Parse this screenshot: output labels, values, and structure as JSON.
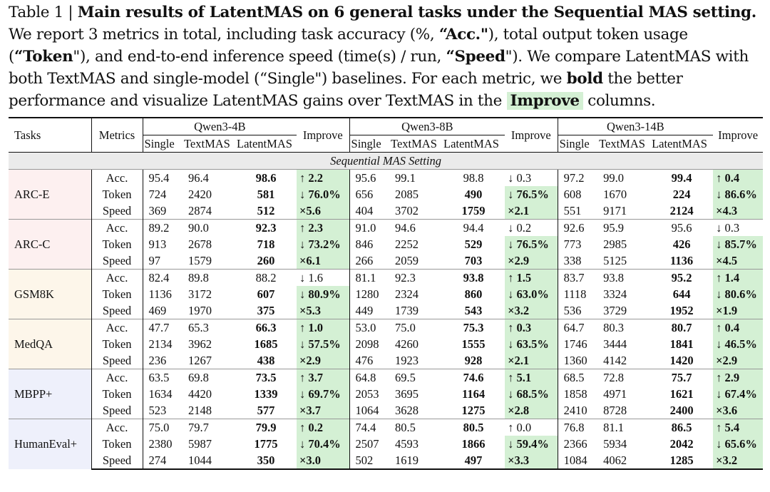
{
  "caption": {
    "label": "Table 1 | ",
    "title": "Main results of LatentMAS on 6 general tasks under the Sequential MAS setting.",
    "text1": " We report 3 metrics in total, including task accuracy (%, ",
    "acc": "“Acc.\"",
    "text2": "), total output token usage (",
    "token": "“Token",
    "text3": "\"), and end-to-end inference speed (time(s) / run, ",
    "speed": "“Speed",
    "text4": "\"). We compare LatentMAS with both TextMAS and single-model (“Single\") baselines. For each metric, we ",
    "bold_word": "bold",
    "text5": " the better performance and visualize LatentMAS gains over TextMAS in the ",
    "improve_word": "Improve",
    "text6": " columns."
  },
  "header": {
    "tasks": "Tasks",
    "metrics": "Metrics",
    "improve": "Improve",
    "models": [
      "Qwen3-4B",
      "Qwen3-8B",
      "Qwen3-14B"
    ],
    "sub": [
      "Single",
      "TextMAS",
      "LatentMAS"
    ]
  },
  "setting": "Sequential MAS Setting",
  "colors": {
    "improve_bg": "#d4f0d4",
    "setting_bg": "#ebebeb"
  },
  "rows": [
    {
      "task": "ARC-E",
      "lines": [
        {
          "metric": "Acc.",
          "m": [
            {
              "s": "95.4",
              "t": "96.4",
              "l": "98.6",
              "lb": true,
              "i": "↑ 2.2",
              "ib": true,
              "ig": true
            },
            {
              "s": "95.6",
              "t": "99.1",
              "l": "98.8",
              "lb": false,
              "i": "↓ 0.3",
              "ib": false,
              "ig": false
            },
            {
              "s": "97.2",
              "t": "99.0",
              "l": "99.4",
              "lb": true,
              "i": "↑ 0.4",
              "ib": true,
              "ig": true
            }
          ]
        },
        {
          "metric": "Token",
          "m": [
            {
              "s": "724",
              "t": "2420",
              "l": "581",
              "lb": true,
              "i": "↓ 76.0%",
              "ib": true,
              "ig": true
            },
            {
              "s": "656",
              "t": "2085",
              "l": "490",
              "lb": true,
              "i": "↓ 76.5%",
              "ib": true,
              "ig": true
            },
            {
              "s": "608",
              "t": "1670",
              "l": "224",
              "lb": true,
              "i": "↓ 86.6%",
              "ib": true,
              "ig": true
            }
          ]
        },
        {
          "metric": "Speed",
          "m": [
            {
              "s": "369",
              "t": "2874",
              "l": "512",
              "lb": true,
              "i": "×5.6",
              "ib": true,
              "ig": true
            },
            {
              "s": "404",
              "t": "3702",
              "l": "1759",
              "lb": true,
              "i": "×2.1",
              "ib": true,
              "ig": true
            },
            {
              "s": "551",
              "t": "9171",
              "l": "2124",
              "lb": true,
              "i": "×4.3",
              "ib": true,
              "ig": true
            }
          ]
        }
      ]
    },
    {
      "task": "ARC-C",
      "lines": [
        {
          "metric": "Acc.",
          "m": [
            {
              "s": "89.2",
              "t": "90.0",
              "l": "92.3",
              "lb": true,
              "i": "↑ 2.3",
              "ib": true,
              "ig": true
            },
            {
              "s": "91.0",
              "t": "94.6",
              "l": "94.4",
              "lb": false,
              "i": "↓ 0.2",
              "ib": false,
              "ig": false
            },
            {
              "s": "92.6",
              "t": "95.9",
              "l": "95.6",
              "lb": false,
              "i": "↓ 0.3",
              "ib": false,
              "ig": false
            }
          ]
        },
        {
          "metric": "Token",
          "m": [
            {
              "s": "913",
              "t": "2678",
              "l": "718",
              "lb": true,
              "i": "↓ 73.2%",
              "ib": true,
              "ig": true
            },
            {
              "s": "846",
              "t": "2252",
              "l": "529",
              "lb": true,
              "i": "↓ 76.5%",
              "ib": true,
              "ig": true
            },
            {
              "s": "773",
              "t": "2985",
              "l": "426",
              "lb": true,
              "i": "↓ 85.7%",
              "ib": true,
              "ig": true
            }
          ]
        },
        {
          "metric": "Speed",
          "m": [
            {
              "s": "97",
              "t": "1579",
              "l": "260",
              "lb": true,
              "i": "×6.1",
              "ib": true,
              "ig": true
            },
            {
              "s": "266",
              "t": "2059",
              "l": "703",
              "lb": true,
              "i": "×2.9",
              "ib": true,
              "ig": true
            },
            {
              "s": "338",
              "t": "5125",
              "l": "1136",
              "lb": true,
              "i": "×4.5",
              "ib": true,
              "ig": true
            }
          ]
        }
      ]
    },
    {
      "task": "GSM8K",
      "lines": [
        {
          "metric": "Acc.",
          "m": [
            {
              "s": "82.4",
              "t": "89.8",
              "l": "88.2",
              "lb": false,
              "i": "↓ 1.6",
              "ib": false,
              "ig": false
            },
            {
              "s": "81.1",
              "t": "92.3",
              "l": "93.8",
              "lb": true,
              "i": "↑ 1.5",
              "ib": true,
              "ig": true
            },
            {
              "s": "83.7",
              "t": "93.8",
              "l": "95.2",
              "lb": true,
              "i": "↑ 1.4",
              "ib": true,
              "ig": true
            }
          ]
        },
        {
          "metric": "Token",
          "m": [
            {
              "s": "1136",
              "t": "3172",
              "l": "607",
              "lb": true,
              "i": "↓ 80.9%",
              "ib": true,
              "ig": true
            },
            {
              "s": "1280",
              "t": "2324",
              "l": "860",
              "lb": true,
              "i": "↓ 63.0%",
              "ib": true,
              "ig": true
            },
            {
              "s": "1118",
              "t": "3324",
              "l": "644",
              "lb": true,
              "i": "↓ 80.6%",
              "ib": true,
              "ig": true
            }
          ]
        },
        {
          "metric": "Speed",
          "m": [
            {
              "s": "469",
              "t": "1970",
              "l": "375",
              "lb": true,
              "i": "×5.3",
              "ib": true,
              "ig": true
            },
            {
              "s": "449",
              "t": "1739",
              "l": "543",
              "lb": true,
              "i": "×3.2",
              "ib": true,
              "ig": true
            },
            {
              "s": "536",
              "t": "3729",
              "l": "1952",
              "lb": true,
              "i": "×1.9",
              "ib": true,
              "ig": true
            }
          ]
        }
      ]
    },
    {
      "task": "MedQA",
      "lines": [
        {
          "metric": "Acc.",
          "m": [
            {
              "s": "47.7",
              "t": "65.3",
              "l": "66.3",
              "lb": true,
              "i": "↑ 1.0",
              "ib": true,
              "ig": true
            },
            {
              "s": "53.0",
              "t": "75.0",
              "l": "75.3",
              "lb": true,
              "i": "↑ 0.3",
              "ib": true,
              "ig": true
            },
            {
              "s": "64.7",
              "t": "80.3",
              "l": "80.7",
              "lb": true,
              "i": "↑ 0.4",
              "ib": true,
              "ig": true
            }
          ]
        },
        {
          "metric": "Token",
          "m": [
            {
              "s": "2134",
              "t": "3962",
              "l": "1685",
              "lb": true,
              "i": "↓ 57.5%",
              "ib": true,
              "ig": true
            },
            {
              "s": "2098",
              "t": "4260",
              "l": "1555",
              "lb": true,
              "i": "↓ 63.5%",
              "ib": true,
              "ig": true
            },
            {
              "s": "1746",
              "t": "3444",
              "l": "1841",
              "lb": true,
              "i": "↓ 46.5%",
              "ib": true,
              "ig": true
            }
          ]
        },
        {
          "metric": "Speed",
          "m": [
            {
              "s": "236",
              "t": "1267",
              "l": "438",
              "lb": true,
              "i": "×2.9",
              "ib": true,
              "ig": true
            },
            {
              "s": "476",
              "t": "1923",
              "l": "928",
              "lb": true,
              "i": "×2.1",
              "ib": true,
              "ig": true
            },
            {
              "s": "1360",
              "t": "4142",
              "l": "1420",
              "lb": true,
              "i": "×2.9",
              "ib": true,
              "ig": true
            }
          ]
        }
      ]
    },
    {
      "task": "MBPP+",
      "lines": [
        {
          "metric": "Acc.",
          "m": [
            {
              "s": "63.5",
              "t": "69.8",
              "l": "73.5",
              "lb": true,
              "i": "↑ 3.7",
              "ib": true,
              "ig": true
            },
            {
              "s": "64.8",
              "t": "69.5",
              "l": "74.6",
              "lb": true,
              "i": "↑ 5.1",
              "ib": true,
              "ig": true
            },
            {
              "s": "68.5",
              "t": "72.8",
              "l": "75.7",
              "lb": true,
              "i": "↑ 2.9",
              "ib": true,
              "ig": true
            }
          ]
        },
        {
          "metric": "Token",
          "m": [
            {
              "s": "1634",
              "t": "4420",
              "l": "1339",
              "lb": true,
              "i": "↓ 69.7%",
              "ib": true,
              "ig": true
            },
            {
              "s": "2053",
              "t": "3695",
              "l": "1164",
              "lb": true,
              "i": "↓ 68.5%",
              "ib": true,
              "ig": true
            },
            {
              "s": "1858",
              "t": "4971",
              "l": "1621",
              "lb": true,
              "i": "↓ 67.4%",
              "ib": true,
              "ig": true
            }
          ]
        },
        {
          "metric": "Speed",
          "m": [
            {
              "s": "523",
              "t": "2148",
              "l": "577",
              "lb": true,
              "i": "×3.7",
              "ib": true,
              "ig": true
            },
            {
              "s": "1064",
              "t": "3628",
              "l": "1275",
              "lb": true,
              "i": "×2.8",
              "ib": true,
              "ig": true
            },
            {
              "s": "2410",
              "t": "8728",
              "l": "2400",
              "lb": true,
              "i": "×3.6",
              "ib": true,
              "ig": true
            }
          ]
        }
      ]
    },
    {
      "task": "HumanEval+",
      "lines": [
        {
          "metric": "Acc.",
          "m": [
            {
              "s": "75.0",
              "t": "79.7",
              "l": "79.9",
              "lb": true,
              "i": "↑ 0.2",
              "ib": true,
              "ig": true
            },
            {
              "s": "74.4",
              "t": "80.5",
              "l": "80.5",
              "lb": true,
              "i": "↑ 0.0",
              "ib": false,
              "ig": false
            },
            {
              "s": "76.8",
              "t": "81.1",
              "l": "86.5",
              "lb": true,
              "i": "↑ 5.4",
              "ib": true,
              "ig": true
            }
          ]
        },
        {
          "metric": "Token",
          "m": [
            {
              "s": "2380",
              "t": "5987",
              "l": "1775",
              "lb": true,
              "i": "↓ 70.4%",
              "ib": true,
              "ig": true
            },
            {
              "s": "2507",
              "t": "4593",
              "l": "1866",
              "lb": true,
              "i": "↓ 59.4%",
              "ib": true,
              "ig": true
            },
            {
              "s": "2366",
              "t": "5934",
              "l": "2042",
              "lb": true,
              "i": "↓ 65.6%",
              "ib": true,
              "ig": true
            }
          ]
        },
        {
          "metric": "Speed",
          "m": [
            {
              "s": "274",
              "t": "1044",
              "l": "350",
              "lb": true,
              "i": "×3.0",
              "ib": true,
              "ig": true
            },
            {
              "s": "502",
              "t": "1619",
              "l": "497",
              "lb": true,
              "i": "×3.3",
              "ib": true,
              "ig": true
            },
            {
              "s": "1084",
              "t": "4062",
              "l": "1285",
              "lb": true,
              "i": "×3.2",
              "ib": true,
              "ig": true
            }
          ]
        }
      ]
    }
  ]
}
